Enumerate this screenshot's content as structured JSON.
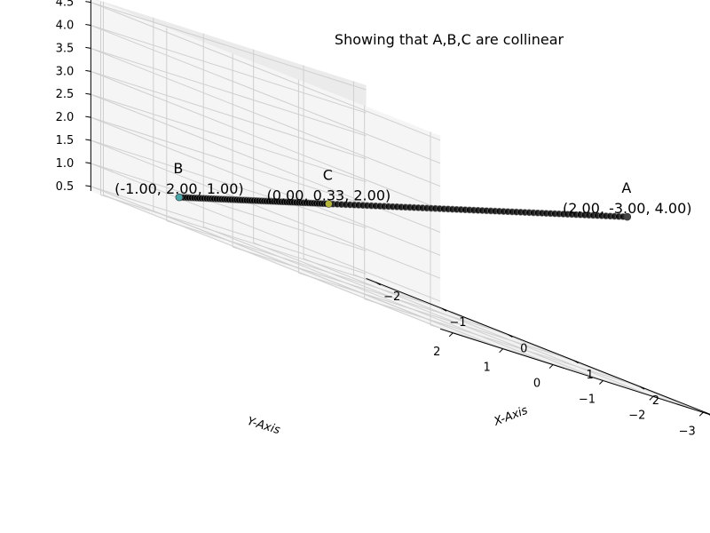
{
  "chart_data": {
    "type": "scatter",
    "projection": "3d",
    "title": "Showing that A,B,C are collinear",
    "xlabel": "X-Axis",
    "ylabel": "Y-Axis",
    "zlabel": "",
    "xlim": [
      -2.15,
      3.15
    ],
    "ylim": [
      -3.25,
      2.25
    ],
    "zlim": [
      0.4,
      4.6
    ],
    "x_ticks": [
      "−2",
      "−1",
      "0",
      "1",
      "2",
      "3"
    ],
    "x_tick_values": [
      -2,
      -1,
      0,
      1,
      2,
      3
    ],
    "y_ticks": [
      "2",
      "1",
      "0",
      "−1",
      "−2",
      "−3"
    ],
    "y_tick_values": [
      2,
      1,
      0,
      -1,
      -2,
      -3
    ],
    "z_ticks": [
      "0.5",
      "1.0",
      "1.5",
      "2.0",
      "2.5",
      "3.0",
      "3.5",
      "4.0",
      "4.5"
    ],
    "z_tick_values": [
      0.5,
      1.0,
      1.5,
      2.0,
      2.5,
      3.0,
      3.5,
      4.0,
      4.5
    ],
    "grid": true,
    "points": [
      {
        "name": "A",
        "coords_text": "(2.00, -3.00, 4.00)",
        "x": 2.0,
        "y": -3.0,
        "z": 4.0,
        "color": "#444444"
      },
      {
        "name": "B",
        "coords_text": "(-1.00, 2.00, 1.00)",
        "x": -1.0,
        "y": 2.0,
        "z": 1.0,
        "color": "#4aa5a8"
      },
      {
        "name": "C",
        "coords_text": "(0.00, 0.33, 2.00)",
        "x": 0.0,
        "y": 0.33,
        "z": 2.0,
        "color": "#b5b53a"
      }
    ],
    "line_segments": [
      {
        "from": "B",
        "to": "C",
        "count": 60,
        "color": "#000000"
      },
      {
        "from": "C",
        "to": "A",
        "count": 70,
        "color": "#000000"
      }
    ]
  }
}
